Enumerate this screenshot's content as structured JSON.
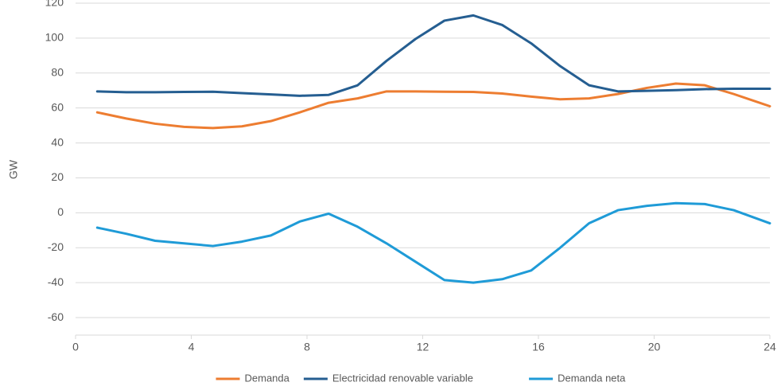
{
  "chart_data": {
    "type": "line",
    "y_label": "GW",
    "x": [
      0.75,
      1.75,
      2.75,
      3.75,
      4.75,
      5.75,
      6.75,
      7.75,
      8.75,
      9.75,
      10.75,
      11.75,
      12.75,
      13.75,
      14.75,
      15.75,
      16.75,
      17.75,
      18.75,
      19.75,
      20.75,
      21.75,
      22.75,
      24
    ],
    "series": [
      {
        "name": "Demanda",
        "color": "#ed7d31",
        "values": [
          57.5,
          54,
          51,
          49.2,
          48.5,
          49.5,
          52.5,
          57.5,
          63,
          65.5,
          69.5,
          69.5,
          69.3,
          69.2,
          68.3,
          66.5,
          65,
          65.5,
          68,
          71.5,
          74,
          73,
          68,
          61
        ]
      },
      {
        "name": "Electricidad renovable variable",
        "color": "#255e91",
        "values": [
          69.5,
          69,
          69,
          69.2,
          69.3,
          68.5,
          67.8,
          67,
          67.5,
          73,
          87,
          99.5,
          110,
          113,
          107.5,
          97,
          84,
          73,
          69.5,
          69.8,
          70.2,
          70.8,
          71,
          71
        ]
      },
      {
        "name": "Demanda neta",
        "color": "#1f9bd7",
        "values": [
          -8.5,
          -12,
          -16,
          -17.5,
          -19,
          -16.5,
          -13,
          -5,
          -0.5,
          -8,
          -17.5,
          -28,
          -38.5,
          -40,
          -38,
          -33,
          -20,
          -6,
          1.5,
          4,
          5.5,
          5,
          1.5,
          -6
        ]
      }
    ],
    "xlim": [
      0,
      24
    ],
    "xticks": [
      0,
      4,
      8,
      12,
      16,
      20,
      24
    ],
    "ylim": [
      -70,
      120
    ],
    "yticks": [
      -60,
      -40,
      -20,
      0,
      20,
      40,
      60,
      80,
      100,
      120
    ],
    "grid": true,
    "legend": "bottom"
  }
}
